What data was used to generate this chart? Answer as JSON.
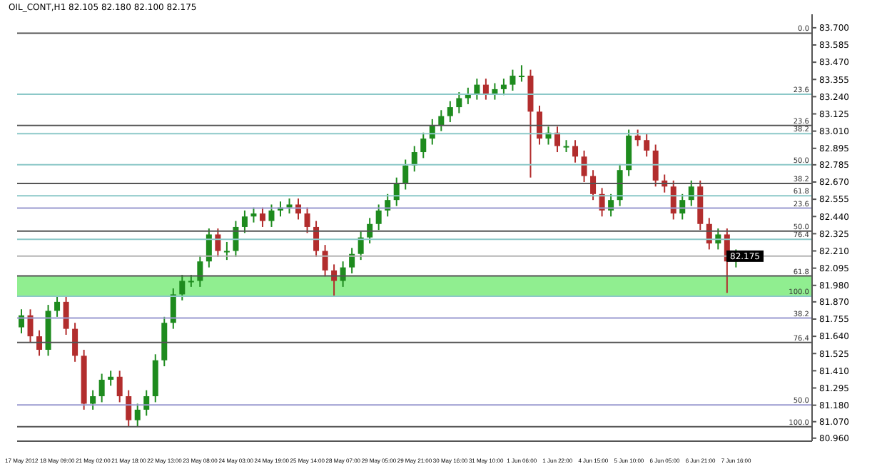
{
  "chart_data": {
    "type": "candlestick",
    "title": "OIL_CONT,H1 82.105 82.180 82.100 82.175",
    "categories": [
      "17 May 2012",
      null,
      null,
      null,
      "18 May 09:00",
      null,
      null,
      null,
      "21 May 02:00",
      null,
      null,
      null,
      "21 May 18:00",
      null,
      null,
      null,
      "22 May 13:00",
      null,
      null,
      null,
      "23 May 08:00",
      null,
      null,
      null,
      "24 May 03:00",
      null,
      null,
      null,
      "24 May 19:00",
      null,
      null,
      null,
      "25 May 14:00",
      null,
      null,
      null,
      "28 May 07:00",
      null,
      null,
      null,
      "29 May 05:00",
      null,
      null,
      null,
      "29 May 21:00",
      null,
      null,
      null,
      "30 May 16:00",
      null,
      null,
      null,
      "31 May 10:00",
      null,
      null,
      null,
      "1 Jun 06:00",
      null,
      null,
      null,
      "1 Jun 22:00",
      null,
      null,
      null,
      "4 Jun 15:00",
      null,
      null,
      null,
      "5 Jun 10:00",
      null,
      null,
      null,
      "6 Jun 05:00",
      null,
      null,
      null,
      "6 Jun 21:00",
      null,
      null,
      null,
      "7 Jun 16:00",
      null,
      null,
      null,
      null,
      null,
      null,
      null,
      null
    ],
    "ohlc": [
      [
        81.7,
        81.82,
        81.66,
        81.78
      ],
      [
        81.78,
        81.82,
        81.6,
        81.64
      ],
      [
        81.64,
        81.68,
        81.51,
        81.55
      ],
      [
        81.55,
        81.85,
        81.51,
        81.81
      ],
      [
        81.81,
        81.91,
        81.77,
        81.87
      ],
      [
        81.87,
        81.91,
        81.65,
        81.69
      ],
      [
        81.69,
        81.73,
        81.47,
        81.51
      ],
      [
        81.51,
        81.55,
        81.15,
        81.19
      ],
      [
        81.19,
        81.28,
        81.15,
        81.24
      ],
      [
        81.24,
        81.39,
        81.2,
        81.35
      ],
      [
        81.35,
        81.41,
        81.31,
        81.37
      ],
      [
        81.37,
        81.41,
        81.2,
        81.24
      ],
      [
        81.24,
        81.28,
        81.04,
        81.08
      ],
      [
        81.08,
        81.19,
        81.04,
        81.15
      ],
      [
        81.15,
        81.28,
        81.11,
        81.24
      ],
      [
        81.24,
        81.52,
        81.2,
        81.48
      ],
      [
        81.48,
        81.77,
        81.44,
        81.73
      ],
      [
        81.73,
        81.96,
        81.69,
        81.92
      ],
      [
        81.92,
        82.05,
        81.88,
        82.01
      ],
      [
        82.01,
        82.05,
        81.97,
        82.01
      ],
      [
        82.01,
        82.18,
        81.97,
        82.14
      ],
      [
        82.14,
        82.36,
        82.1,
        82.32
      ],
      [
        82.32,
        82.36,
        82.17,
        82.21
      ],
      [
        82.21,
        82.27,
        82.15,
        82.21
      ],
      [
        82.21,
        82.41,
        82.17,
        82.37
      ],
      [
        82.37,
        82.48,
        82.33,
        82.44
      ],
      [
        82.44,
        82.5,
        82.4,
        82.46
      ],
      [
        82.46,
        82.5,
        82.37,
        82.41
      ],
      [
        82.41,
        82.52,
        82.37,
        82.48
      ],
      [
        82.48,
        82.54,
        82.44,
        82.5
      ],
      [
        82.5,
        82.56,
        82.46,
        82.52
      ],
      [
        82.52,
        82.56,
        82.42,
        82.46
      ],
      [
        82.46,
        82.5,
        82.33,
        82.37
      ],
      [
        82.37,
        82.41,
        82.17,
        82.21
      ],
      [
        82.21,
        82.25,
        82.04,
        82.08
      ],
      [
        82.08,
        82.12,
        81.91,
        82.01
      ],
      [
        82.01,
        82.14,
        81.97,
        82.1
      ],
      [
        82.1,
        82.23,
        82.06,
        82.19
      ],
      [
        82.19,
        82.34,
        82.15,
        82.3
      ],
      [
        82.3,
        82.43,
        82.26,
        82.39
      ],
      [
        82.39,
        82.52,
        82.35,
        82.48
      ],
      [
        82.48,
        82.59,
        82.44,
        82.55
      ],
      [
        82.55,
        82.7,
        82.51,
        82.66
      ],
      [
        82.66,
        82.82,
        82.62,
        82.78
      ],
      [
        82.78,
        82.91,
        82.74,
        82.87
      ],
      [
        82.87,
        83.0,
        82.83,
        82.96
      ],
      [
        82.96,
        83.09,
        82.92,
        83.05
      ],
      [
        83.05,
        83.15,
        83.01,
        83.11
      ],
      [
        83.11,
        83.21,
        83.07,
        83.17
      ],
      [
        83.17,
        83.27,
        83.13,
        83.23
      ],
      [
        83.23,
        83.3,
        83.19,
        83.26
      ],
      [
        83.26,
        83.36,
        83.22,
        83.32
      ],
      [
        83.32,
        83.36,
        83.22,
        83.26
      ],
      [
        83.26,
        83.33,
        83.22,
        83.29
      ],
      [
        83.29,
        83.36,
        83.25,
        83.32
      ],
      [
        83.32,
        83.42,
        83.28,
        83.38
      ],
      [
        83.38,
        83.45,
        83.34,
        83.38
      ],
      [
        83.38,
        83.42,
        82.7,
        83.14
      ],
      [
        83.14,
        83.18,
        82.92,
        82.96
      ],
      [
        82.96,
        83.04,
        82.92,
        83.0
      ],
      [
        83.0,
        83.04,
        82.87,
        82.91
      ],
      [
        82.91,
        82.95,
        82.87,
        82.91
      ],
      [
        82.91,
        82.95,
        82.8,
        82.84
      ],
      [
        82.84,
        82.88,
        82.67,
        82.71
      ],
      [
        82.71,
        82.75,
        82.55,
        82.59
      ],
      [
        82.59,
        82.63,
        82.44,
        82.48
      ],
      [
        82.48,
        82.59,
        82.44,
        82.55
      ],
      [
        82.55,
        82.79,
        82.51,
        82.75
      ],
      [
        82.75,
        83.02,
        82.71,
        82.98
      ],
      [
        82.98,
        83.02,
        82.91,
        82.95
      ],
      [
        82.95,
        82.99,
        82.84,
        82.88
      ],
      [
        82.88,
        82.92,
        82.64,
        82.68
      ],
      [
        82.68,
        82.72,
        82.6,
        82.64
      ],
      [
        82.64,
        82.68,
        82.42,
        82.46
      ],
      [
        82.46,
        82.59,
        82.42,
        82.55
      ],
      [
        82.55,
        82.68,
        82.51,
        82.64
      ],
      [
        82.64,
        82.68,
        82.35,
        82.39
      ],
      [
        82.39,
        82.43,
        82.22,
        82.26
      ],
      [
        82.26,
        82.36,
        82.22,
        82.32
      ],
      [
        82.32,
        82.36,
        81.93,
        82.14
      ],
      [
        82.14,
        82.22,
        82.1,
        82.175
      ],
      null,
      null,
      null,
      null,
      null,
      null,
      null,
      null
    ],
    "colors": [
      "#1e8b1e",
      "#b22d2d",
      "#b22d2d",
      "#1e8b1e",
      "#1e8b1e",
      "#b22d2d",
      "#b22d2d",
      "#b22d2d",
      "#1e8b1e",
      "#1e8b1e",
      "#1e8b1e",
      "#b22d2d",
      "#b22d2d",
      "#1e8b1e",
      "#1e8b1e",
      "#1e8b1e",
      "#1e8b1e",
      "#1e8b1e",
      "#1e8b1e",
      "#1e8b1e",
      "#1e8b1e",
      "#1e8b1e",
      "#b22d2d",
      "#1e8b1e",
      "#1e8b1e",
      "#1e8b1e",
      "#1e8b1e",
      "#b22d2d",
      "#1e8b1e",
      "#1e8b1e",
      "#1e8b1e",
      "#b22d2d",
      "#b22d2d",
      "#b22d2d",
      "#b22d2d",
      "#b22d2d",
      "#1e8b1e",
      "#1e8b1e",
      "#1e8b1e",
      "#1e8b1e",
      "#1e8b1e",
      "#1e8b1e",
      "#1e8b1e",
      "#1e8b1e",
      "#1e8b1e",
      "#1e8b1e",
      "#1e8b1e",
      "#1e8b1e",
      "#1e8b1e",
      "#1e8b1e",
      "#1e8b1e",
      "#1e8b1e",
      "#b22d2d",
      "#1e8b1e",
      "#1e8b1e",
      "#1e8b1e",
      "#1e8b1e",
      "#b22d2d",
      "#b22d2d",
      "#1e8b1e",
      "#b22d2d",
      "#1e8b1e",
      "#b22d2d",
      "#b22d2d",
      "#b22d2d",
      "#b22d2d",
      "#1e8b1e",
      "#1e8b1e",
      "#1e8b1e",
      "#b22d2d",
      "#b22d2d",
      "#b22d2d",
      "#b22d2d",
      "#b22d2d",
      "#1e8b1e",
      "#1e8b1e",
      "#b22d2d",
      "#b22d2d",
      "#1e8b1e",
      "#b22d2d",
      "#1e8b1e",
      null,
      null,
      null,
      null,
      null,
      null,
      null,
      null
    ],
    "ylim": [
      80.94,
      83.79
    ],
    "yticks": [
      {
        "value": 83.7,
        "label": "83.700"
      },
      {
        "value": 83.585,
        "label": "83.585"
      },
      {
        "value": 83.47,
        "label": "83.470"
      },
      {
        "value": 83.355,
        "label": "83.355"
      },
      {
        "value": 83.24,
        "label": "83.240"
      },
      {
        "value": 83.125,
        "label": "83.125"
      },
      {
        "value": 83.01,
        "label": "83.010"
      },
      {
        "value": 82.895,
        "label": "82.895"
      },
      {
        "value": 82.785,
        "label": "82.785"
      },
      {
        "value": 82.67,
        "label": "82.670"
      },
      {
        "value": 82.555,
        "label": "82.555"
      },
      {
        "value": 82.44,
        "label": "82.440"
      },
      {
        "value": 82.325,
        "label": "82.325"
      },
      {
        "value": 82.21,
        "label": "82.210"
      },
      {
        "value": 82.095,
        "label": "82.095"
      },
      {
        "value": 81.98,
        "label": "81.980"
      },
      {
        "value": 81.87,
        "label": "81.870"
      },
      {
        "value": 81.755,
        "label": "81.755"
      },
      {
        "value": 81.64,
        "label": "81.640"
      },
      {
        "value": 81.525,
        "label": "81.525"
      },
      {
        "value": 81.41,
        "label": "81.410"
      },
      {
        "value": 81.295,
        "label": "81.295"
      },
      {
        "value": 81.18,
        "label": "81.180"
      },
      {
        "value": 81.07,
        "label": "81.070"
      },
      {
        "value": 80.96,
        "label": "80.960"
      }
    ],
    "ref_lines": [
      {
        "axis": "y",
        "value": 83.664,
        "color": "#555555"
      },
      {
        "axis": "y",
        "value": 83.256,
        "color": "#8cc8c8"
      },
      {
        "axis": "y",
        "value": 83.048,
        "color": "#555555"
      },
      {
        "axis": "y",
        "value": 82.993,
        "color": "#8cc8c8"
      },
      {
        "axis": "y",
        "value": 82.785,
        "color": "#8cc8c8"
      },
      {
        "axis": "y",
        "value": 82.66,
        "color": "#555555"
      },
      {
        "axis": "y",
        "value": 82.578,
        "color": "#8cc8c8"
      },
      {
        "axis": "y",
        "value": 82.496,
        "color": "#9a9ad0"
      },
      {
        "axis": "y",
        "value": 82.342,
        "color": "#555555"
      },
      {
        "axis": "y",
        "value": 82.288,
        "color": "#8cc8c8"
      },
      {
        "axis": "y",
        "value": 82.043,
        "color": "#555555"
      },
      {
        "axis": "y",
        "value": 81.907,
        "color": "#8cc8c8"
      },
      {
        "axis": "y",
        "value": 81.762,
        "color": "#9a9ad0"
      },
      {
        "axis": "y",
        "value": 81.599,
        "color": "#555555"
      },
      {
        "axis": "y",
        "value": 81.182,
        "color": "#9a9ad0"
      },
      {
        "axis": "y",
        "value": 81.037,
        "color": "#555555"
      },
      {
        "axis": "y",
        "value": 82.175,
        "label": "82.175",
        "color": "#b4b4b4"
      }
    ],
    "annotations": [
      {
        "text": "0.0",
        "y": 83.664
      },
      {
        "text": "23.6",
        "y": 83.256
      },
      {
        "text": "23.6",
        "y": 83.048
      },
      {
        "text": "38.2",
        "y": 82.993
      },
      {
        "text": "50.0",
        "y": 82.785
      },
      {
        "text": "38.2",
        "y": 82.66
      },
      {
        "text": "61.8",
        "y": 82.578
      },
      {
        "text": "23.6",
        "y": 82.496
      },
      {
        "text": "50.0",
        "y": 82.342
      },
      {
        "text": "76.4",
        "y": 82.288
      },
      {
        "text": "61.8",
        "y": 82.043
      },
      {
        "text": "100.0",
        "y": 81.907
      },
      {
        "text": "38.2",
        "y": 81.762
      },
      {
        "text": "76.4",
        "y": 81.599
      },
      {
        "text": "50.0",
        "y": 81.182
      },
      {
        "text": "100.0",
        "y": 81.037
      }
    ],
    "bands": [
      {
        "axis": "y",
        "from": 81.907,
        "to": 82.043,
        "color": "#90ee90"
      }
    ]
  }
}
